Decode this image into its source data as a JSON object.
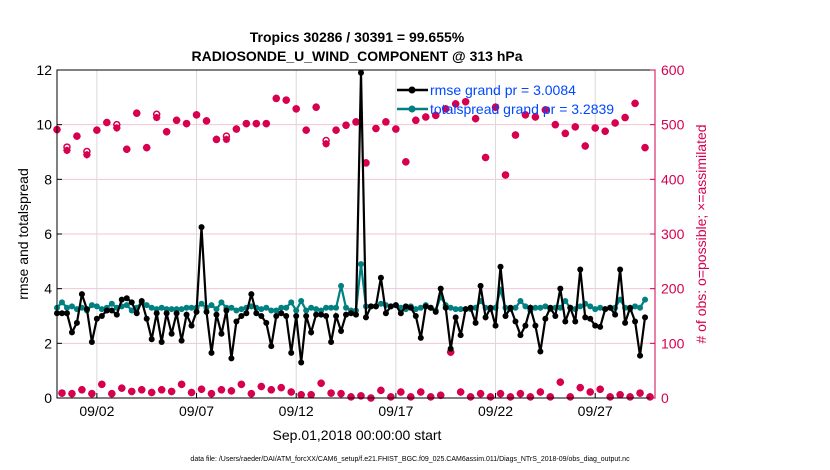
{
  "chart_data": {
    "type": "line",
    "title_line1": "Tropics 30286 / 30391 = 99.655%",
    "title_line2": "RADIOSONDE_U_WIND_COMPONENT @ 313 hPa",
    "xlabel": "Sep.01,2018 00:00:00 start",
    "ylabel_left": "rmse and totalspread",
    "ylabel_right": "# of obs: o=possible; ×=assimilated",
    "footer": "data file: /Users/raeder/DAI/ATM_forcXX/CAM6_setup/f.e21.FHIST_BGC.f09_025.CAM6assim.011/Diags_NTrS_2018-09/obs_diag_output.nc",
    "time_step_hours": 6,
    "x_ticks": [
      {
        "day": 2,
        "label": "09/02"
      },
      {
        "day": 7,
        "label": "09/07"
      },
      {
        "day": 12,
        "label": "09/12"
      },
      {
        "day": 17,
        "label": "09/17"
      },
      {
        "day": 22,
        "label": "09/22"
      },
      {
        "day": 27,
        "label": "09/27"
      }
    ],
    "x_range_days": [
      0,
      30
    ],
    "ylim_left": [
      0,
      12
    ],
    "yticks_left": [
      "0",
      "2",
      "4",
      "6",
      "8",
      "10",
      "12"
    ],
    "ylim_right": [
      0,
      600
    ],
    "yticks_right": [
      "0",
      "100",
      "200",
      "300",
      "400",
      "500",
      "600"
    ],
    "grid": true,
    "legend_placement": "top-right",
    "colors": {
      "rmse": "#000000",
      "totalspread": "#008080",
      "obs": "#d6004f",
      "legend_text": "#0048ff",
      "grid_h": "#f2c6d6",
      "grid_v": "#d9d9d9"
    },
    "series": [
      {
        "name": "rmse grand pr = 3.0084",
        "axis": "left",
        "values": [
          3.1,
          3.1,
          3.1,
          2.4,
          2.75,
          3.8,
          3.25,
          2.05,
          2.9,
          3.0,
          3.2,
          3.2,
          3.05,
          3.6,
          3.65,
          3.5,
          3.1,
          3.55,
          2.9,
          2.15,
          3.1,
          2.05,
          3.1,
          2.35,
          3.1,
          2.1,
          3.05,
          2.65,
          3.15,
          6.25,
          3.15,
          1.65,
          3.05,
          2.35,
          3.2,
          1.45,
          2.8,
          3.0,
          3.1,
          3.8,
          3.1,
          3.0,
          2.75,
          1.9,
          3.0,
          3.1,
          3.0,
          1.65,
          3.0,
          1.3,
          3.0,
          2.4,
          3.05,
          3.05,
          3.0,
          2.05,
          3.0,
          2.45,
          3.05,
          3.1,
          3.05,
          11.9,
          2.95,
          3.35,
          3.35,
          4.4,
          3.1,
          3.35,
          3.4,
          3.1,
          3.35,
          3.3,
          3.0,
          2.2,
          3.35,
          3.3,
          3.15,
          4.0,
          3.3,
          1.8,
          2.95,
          2.3,
          3.25,
          3.3,
          2.75,
          4.1,
          2.95,
          3.3,
          2.65,
          4.8,
          3.0,
          3.3,
          2.8,
          2.3,
          2.65,
          3.3,
          2.65,
          1.7,
          2.9,
          3.3,
          3.0,
          4.0,
          2.8,
          3.3,
          2.8,
          4.7,
          2.95,
          2.9,
          2.65,
          2.6,
          3.25,
          3.3,
          3.05,
          4.7,
          2.75,
          3.3,
          2.8,
          1.55,
          2.95
        ]
      },
      {
        "name": "totalspread grand pr = 3.2839",
        "axis": "left",
        "values": [
          3.3,
          3.5,
          3.3,
          3.35,
          3.25,
          3.3,
          3.2,
          3.4,
          3.35,
          3.25,
          3.3,
          3.45,
          3.3,
          3.35,
          3.4,
          3.2,
          3.3,
          3.5,
          3.4,
          3.3,
          3.25,
          3.3,
          3.25,
          3.25,
          3.25,
          3.25,
          3.3,
          3.3,
          3.3,
          3.45,
          3.3,
          3.4,
          3.25,
          3.5,
          3.3,
          3.3,
          3.2,
          3.25,
          3.3,
          3.35,
          3.3,
          3.25,
          3.3,
          3.2,
          3.2,
          3.3,
          3.3,
          3.5,
          3.2,
          3.55,
          3.2,
          3.3,
          3.25,
          3.2,
          3.3,
          3.3,
          3.3,
          4.1,
          3.3,
          3.2,
          3.2,
          4.9,
          3.35,
          3.35,
          3.35,
          3.45,
          3.4,
          3.35,
          3.4,
          3.3,
          3.25,
          3.35,
          3.25,
          3.3,
          3.4,
          3.3,
          3.2,
          3.7,
          3.4,
          3.3,
          3.25,
          3.25,
          3.25,
          3.25,
          3.3,
          3.55,
          3.3,
          3.25,
          3.3,
          3.95,
          3.3,
          3.25,
          3.3,
          3.55,
          3.35,
          3.2,
          3.3,
          3.3,
          3.35,
          3.25,
          3.3,
          3.3,
          3.55,
          3.3,
          3.25,
          3.35,
          3.45,
          3.35,
          3.25,
          3.3,
          3.25,
          3.3,
          3.3,
          3.6,
          3.3,
          3.25,
          3.35,
          3.3,
          3.6
        ]
      },
      {
        "name": "obs possible",
        "axis": "right",
        "marker": "o",
        "values": [
          491,
          9,
          459,
          8,
          479,
          15,
          451,
          8,
          490,
          25,
          504,
          8,
          500,
          18,
          455,
          12,
          521,
          15,
          458,
          10,
          519,
          15,
          487,
          12,
          508,
          25,
          502,
          10,
          518,
          16,
          507,
          8,
          473,
          15,
          479,
          13,
          492,
          25,
          502,
          8,
          502,
          21,
          502,
          15,
          548,
          19,
          545,
          11,
          529,
          6,
          490,
          6,
          532,
          27,
          471,
          9,
          490,
          8,
          499,
          2,
          505,
          4,
          430,
          0,
          493,
          14,
          505,
          2,
          492,
          11,
          432,
          2,
          508,
          11,
          514,
          2,
          517,
          5,
          529,
          84,
          538,
          11,
          542,
          2,
          511,
          8,
          440,
          2,
          532,
          8,
          408,
          2,
          481,
          8,
          518,
          2,
          514,
          11,
          527,
          2,
          500,
          29,
          484,
          2,
          496,
          19,
          461,
          11,
          494,
          16,
          488,
          2,
          503,
          6,
          513,
          2,
          539,
          9,
          458,
          2
        ]
      },
      {
        "name": "obs assimilated",
        "axis": "right",
        "marker": "x",
        "values": [
          491,
          9,
          453,
          8,
          479,
          15,
          445,
          8,
          490,
          25,
          504,
          8,
          494,
          18,
          455,
          12,
          521,
          15,
          458,
          10,
          513,
          15,
          487,
          12,
          508,
          25,
          502,
          10,
          518,
          16,
          507,
          8,
          473,
          15,
          473,
          13,
          492,
          25,
          502,
          8,
          502,
          21,
          502,
          15,
          548,
          19,
          545,
          11,
          529,
          6,
          490,
          6,
          532,
          27,
          465,
          9,
          490,
          8,
          499,
          2,
          505,
          4,
          430,
          0,
          493,
          14,
          505,
          2,
          492,
          11,
          432,
          2,
          508,
          11,
          514,
          2,
          517,
          5,
          529,
          84,
          538,
          11,
          542,
          2,
          511,
          8,
          440,
          2,
          532,
          8,
          408,
          2,
          481,
          8,
          518,
          2,
          514,
          11,
          527,
          2,
          500,
          29,
          484,
          2,
          496,
          19,
          461,
          11,
          494,
          16,
          488,
          2,
          503,
          6,
          513,
          2,
          539,
          9,
          458,
          2
        ]
      }
    ]
  }
}
